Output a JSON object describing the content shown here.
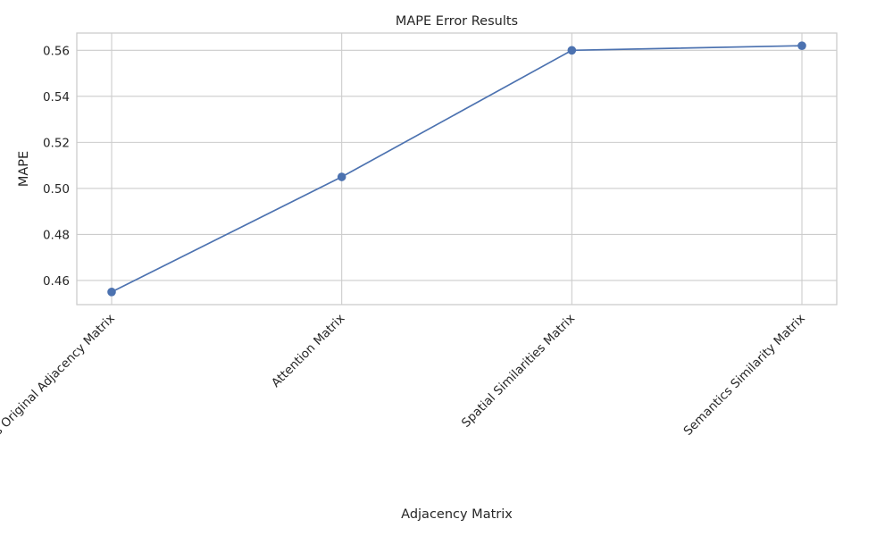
{
  "chart_data": {
    "type": "line",
    "title": "MAPE Error Results",
    "xlabel": "Adjacency Matrix",
    "ylabel": "MAPE",
    "categories": [
      "BysGNN's Original Adjacency Matrix",
      "Attention Matrix",
      "Spatial Similarities Matrix",
      "Semantics Similarity Matrix"
    ],
    "series": [
      {
        "values": [
          0.455,
          0.505,
          0.56,
          0.562
        ],
        "color": "#4c72b0",
        "marker": "circle"
      }
    ],
    "ylim": [
      0.4495,
      0.5675
    ],
    "yticks": [
      0.46,
      0.48,
      0.5,
      0.52,
      0.54,
      0.56
    ],
    "ytick_labels": [
      "0.46",
      "0.48",
      "0.50",
      "0.52",
      "0.54",
      "0.56"
    ],
    "xtick_rotation_deg": 45,
    "grid": true,
    "legend": "none"
  }
}
